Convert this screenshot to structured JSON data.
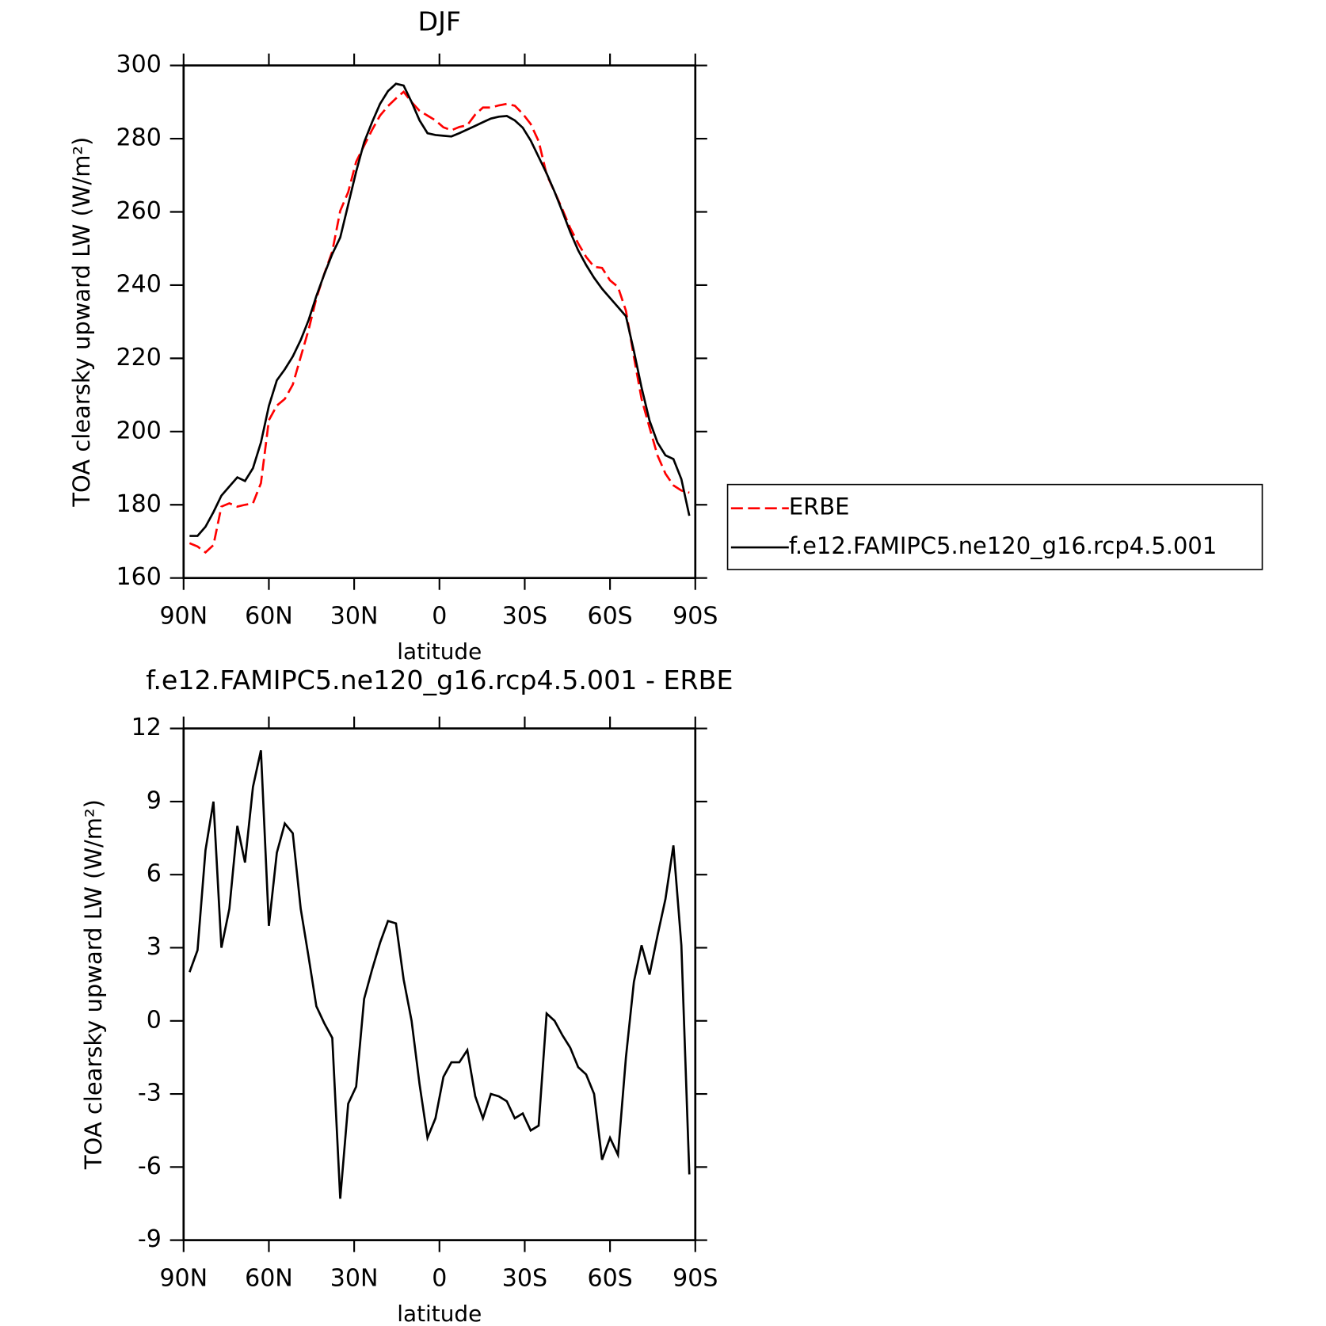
{
  "chart_data": [
    {
      "type": "line",
      "title": "DJF",
      "xlabel": "latitude",
      "ylabel": "TOA clearsky upward LW (W/m²)",
      "x": [
        87.9,
        85.1,
        82.3,
        79.5,
        76.7,
        73.9,
        71.1,
        68.4,
        65.6,
        62.8,
        60.0,
        57.2,
        54.4,
        51.6,
        48.8,
        46.0,
        43.3,
        40.5,
        37.7,
        34.9,
        32.1,
        29.3,
        26.5,
        23.7,
        20.9,
        18.1,
        15.3,
        12.6,
        9.8,
        7.0,
        4.2,
        1.4,
        -1.4,
        -4.2,
        -7.0,
        -9.8,
        -12.6,
        -15.3,
        -18.1,
        -20.9,
        -23.7,
        -26.5,
        -29.3,
        -32.1,
        -34.9,
        -37.7,
        -40.5,
        -43.3,
        -46.0,
        -48.8,
        -51.6,
        -54.4,
        -57.2,
        -60.0,
        -62.8,
        -65.6,
        -68.4,
        -71.1,
        -73.9,
        -76.7,
        -79.5,
        -82.3,
        -85.1,
        -87.9
      ],
      "series": [
        {
          "name": "ERBE",
          "color": "#ff0000",
          "dashed": true,
          "values": [
            169.5,
            168.6,
            167,
            169,
            179.5,
            180.4,
            179.5,
            180,
            180.4,
            185.9,
            203.1,
            207.1,
            208.9,
            212.8,
            220.4,
            227.9,
            236.4,
            243.1,
            249.2,
            260.3,
            265.4,
            273.7,
            278.1,
            282.4,
            286.3,
            288.9,
            291,
            292.8,
            290,
            287.6,
            286.3,
            285,
            283.1,
            282.3,
            283.2,
            283.7,
            286.6,
            288.5,
            288.5,
            289.1,
            289.5,
            289,
            286.8,
            284,
            279.3,
            270.2,
            265.5,
            260.6,
            255.6,
            251.4,
            247.7,
            245,
            244.7,
            241.3,
            239.5,
            233,
            220.4,
            208.9,
            201.1,
            193.5,
            188.5,
            185.3,
            183.9,
            183.3
          ]
        },
        {
          "name": "f.e12.FAMIPC5.ne120_g16.rcp4.5.001",
          "color": "#000000",
          "dashed": false,
          "values": [
            171.5,
            171.5,
            174,
            178,
            182.5,
            185,
            187.5,
            186.5,
            190,
            197,
            207,
            214,
            217,
            220.5,
            225,
            230.5,
            237,
            243,
            248.5,
            253,
            262,
            271,
            279,
            284.5,
            289.5,
            293,
            295,
            294.5,
            290,
            285,
            281.5,
            281,
            280.8,
            280.6,
            281.5,
            282.5,
            283.5,
            284.5,
            285.5,
            286,
            286.2,
            285,
            283,
            279.5,
            275,
            270.5,
            265.5,
            260,
            254.5,
            249.5,
            245.5,
            242,
            239,
            236.5,
            234,
            231.5,
            222,
            212,
            203,
            197,
            193.5,
            192.5,
            187,
            177
          ]
        }
      ],
      "xlim": [
        90,
        -90
      ],
      "xticks": [
        {
          "value": 90,
          "label": "90N"
        },
        {
          "value": 60,
          "label": "60N"
        },
        {
          "value": 30,
          "label": "30N"
        },
        0,
        {
          "value": -30,
          "label": "30S"
        },
        {
          "value": -60,
          "label": "60S"
        },
        {
          "value": -90,
          "label": "90S"
        }
      ],
      "ylim": [
        160,
        300
      ],
      "yticks": [
        160,
        180,
        200,
        220,
        240,
        260,
        280,
        300
      ],
      "legend": "outside right"
    },
    {
      "type": "line",
      "title": "f.e12.FAMIPC5.ne120_g16.rcp4.5.001 - ERBE",
      "xlabel": "latitude",
      "ylabel": "TOA clearsky upward LW (W/m²)",
      "x": [
        87.9,
        85.1,
        82.3,
        79.5,
        76.7,
        73.9,
        71.1,
        68.4,
        65.6,
        62.8,
        60.0,
        57.2,
        54.4,
        51.6,
        48.8,
        46.0,
        43.3,
        40.5,
        37.7,
        34.9,
        32.1,
        29.3,
        26.5,
        23.7,
        20.9,
        18.1,
        15.3,
        12.6,
        9.8,
        7.0,
        4.2,
        1.4,
        -1.4,
        -4.2,
        -7.0,
        -9.8,
        -12.6,
        -15.3,
        -18.1,
        -20.9,
        -23.7,
        -26.5,
        -29.3,
        -32.1,
        -34.9,
        -37.7,
        -40.5,
        -43.3,
        -46.0,
        -48.8,
        -51.6,
        -54.4,
        -57.2,
        -60.0,
        -62.8,
        -65.6,
        -68.4,
        -71.1,
        -73.9,
        -76.7,
        -79.5,
        -82.3,
        -85.1,
        -87.9
      ],
      "color": "#000000",
      "values": [
        2.0,
        2.9,
        7.0,
        9.0,
        3.0,
        4.6,
        8.0,
        6.5,
        9.6,
        11.1,
        3.9,
        6.9,
        8.1,
        7.7,
        4.6,
        2.6,
        0.6,
        -0.1,
        -0.7,
        -7.3,
        -3.4,
        -2.7,
        0.9,
        2.1,
        3.2,
        4.1,
        4.0,
        1.7,
        0.0,
        -2.6,
        -4.8,
        -4.0,
        -2.3,
        -1.7,
        -1.7,
        -1.2,
        -3.1,
        -4.0,
        -3.0,
        -3.1,
        -3.3,
        -4.0,
        -3.8,
        -4.5,
        -4.3,
        0.3,
        0.0,
        -0.6,
        -1.1,
        -1.9,
        -2.2,
        -3.0,
        -5.7,
        -4.8,
        -5.5,
        -1.5,
        1.6,
        3.1,
        1.9,
        3.5,
        5.0,
        7.2,
        3.1,
        -6.3
      ],
      "xlim": [
        90,
        -90
      ],
      "xticks": [
        {
          "value": 90,
          "label": "90N"
        },
        {
          "value": 60,
          "label": "60N"
        },
        {
          "value": 30,
          "label": "30N"
        },
        0,
        {
          "value": -30,
          "label": "30S"
        },
        {
          "value": -60,
          "label": "60S"
        },
        {
          "value": -90,
          "label": "90S"
        }
      ],
      "ylim": [
        -9,
        12
      ],
      "yticks": [
        -9,
        -6,
        -3,
        0,
        3,
        6,
        9,
        12
      ]
    }
  ]
}
